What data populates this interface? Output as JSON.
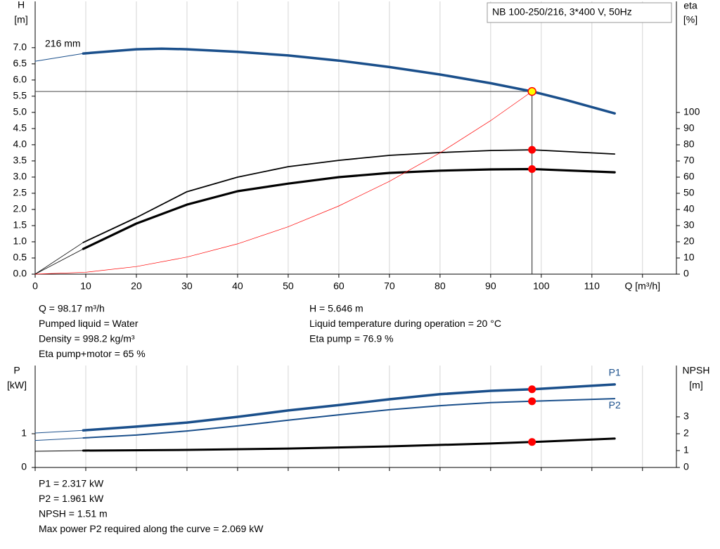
{
  "chart_data": [
    {
      "type": "line",
      "title": "NB 100-250/216, 3*400 V, 50Hz",
      "y_label": "H",
      "y_unit": "[m]",
      "y2_label": "eta",
      "y2_unit": "[%]",
      "annotations": [
        "216 mm"
      ],
      "xlim": [
        0,
        126.7
      ],
      "xticks": [
        0,
        10,
        20,
        30,
        40,
        50,
        60,
        70,
        80,
        90,
        100,
        110,
        {
          "value": 120,
          "label": "Q [m³/h]"
        }
      ],
      "show_xtick_labels": true,
      "ylim": [
        0,
        8.43
      ],
      "yticks": [
        {
          "value": 0,
          "label": "0.0"
        },
        {
          "value": 0.5,
          "label": "0.5"
        },
        {
          "value": 1,
          "label": "1.0"
        },
        {
          "value": 1.5,
          "label": "1.5"
        },
        {
          "value": 2,
          "label": "2.0"
        },
        {
          "value": 2.5,
          "label": "2.5"
        },
        {
          "value": 3,
          "label": "3.0"
        },
        {
          "value": 3.5,
          "label": "3.5"
        },
        {
          "value": 4,
          "label": "4.0"
        },
        {
          "value": 4.5,
          "label": "4.5"
        },
        {
          "value": 5,
          "label": "5.0"
        },
        {
          "value": 5.5,
          "label": "5.5"
        },
        {
          "value": 6,
          "label": "6.0"
        },
        {
          "value": 6.5,
          "label": "6.5"
        },
        {
          "value": 7,
          "label": "7.0"
        }
      ],
      "y2lim": [
        0,
        168.7
      ],
      "y2ticks": [
        0,
        10,
        20,
        30,
        40,
        50,
        60,
        70,
        80,
        90,
        100
      ],
      "series": [
        {
          "color": "#1a4f8b",
          "x": [
            0,
            9.5
          ],
          "values": [
            6.58,
            6.82
          ]
        },
        {
          "color": "#1a4f8b",
          "x": [
            9.5,
            20,
            25,
            30,
            40,
            50,
            60,
            70,
            80,
            90,
            98.17,
            105,
            114.5
          ],
          "values": [
            6.82,
            6.95,
            6.97,
            6.95,
            6.87,
            6.76,
            6.6,
            6.4,
            6.17,
            5.9,
            5.646,
            5.38,
            4.97
          ]
        },
        {
          "color": "#000000",
          "axis": "y2",
          "x": [
            0,
            9.5
          ],
          "values": [
            0,
            19.6
          ]
        },
        {
          "color": "#000000",
          "axis": "y2",
          "x": [
            9.5,
            20,
            30,
            40,
            50,
            60,
            70,
            80,
            90,
            98.17,
            114.5
          ],
          "values": [
            19.6,
            35,
            51,
            60,
            66.5,
            70.4,
            73.5,
            75.2,
            76.5,
            76.9,
            74.3
          ]
        },
        {
          "color": "#000000",
          "axis": "y2",
          "x": [
            0,
            9.5
          ],
          "values": [
            0,
            15.6
          ]
        },
        {
          "color": "#000000",
          "axis": "y2",
          "x": [
            9.5,
            20,
            30,
            40,
            50,
            60,
            70,
            80,
            90,
            98.17,
            114.5
          ],
          "values": [
            15.6,
            31.3,
            43,
            51.3,
            56,
            60,
            62.6,
            64,
            64.8,
            65,
            63
          ]
        },
        {
          "color": "#ff0000",
          "x": [
            0,
            10,
            20,
            30,
            40,
            50,
            60,
            70,
            80,
            90,
            98.17
          ],
          "values": [
            0,
            0.059,
            0.234,
            0.527,
            0.937,
            1.464,
            2.108,
            2.87,
            3.75,
            4.745,
            5.646
          ]
        }
      ],
      "points": [
        {
          "x": 98.17,
          "y": 5.646,
          "color": "#ffff00",
          "duty_lines": true
        },
        {
          "x": 98.17,
          "y": 76.9,
          "axis": "y2",
          "color": "#ff0000"
        },
        {
          "x": 98.17,
          "y": 65,
          "axis": "y2",
          "color": "#ff0000"
        }
      ],
      "notes_left": [
        "Q = 98.17 m³/h",
        "Pumped liquid = Water",
        "Density = 998.2 kg/m³",
        "Eta pump+motor = 65 %"
      ],
      "notes_right": [
        "H = 5.646 m",
        "Liquid temperature during operation = 20 °C",
        "Eta pump = 76.9 %"
      ]
    },
    {
      "type": "line",
      "y_label": "P",
      "y_unit": "[kW]",
      "y2_label": "NPSH",
      "y2_unit": "[m]",
      "xlim": [
        0,
        126.7
      ],
      "xticks": [
        0,
        10,
        20,
        30,
        40,
        50,
        60,
        70,
        80,
        90,
        100,
        110,
        120
      ],
      "show_xtick_labels": false,
      "ylim": [
        0,
        3.02
      ],
      "yticks": [
        0,
        1
      ],
      "y2lim": [
        0,
        6.04
      ],
      "y2ticks": [
        0,
        1,
        2,
        3
      ],
      "series": [
        {
          "color": "#1a4f8b",
          "x": [
            0,
            9.5
          ],
          "values": [
            1.02,
            1.1
          ]
        },
        {
          "name": "P1",
          "color": "#1a4f8b",
          "x": [
            9.5,
            20,
            30,
            40,
            50,
            60,
            70,
            80,
            90,
            98.17,
            114.5
          ],
          "values": [
            1.1,
            1.21,
            1.33,
            1.5,
            1.69,
            1.85,
            2.02,
            2.17,
            2.27,
            2.317,
            2.46
          ]
        },
        {
          "color": "#1a4f8b",
          "x": [
            0,
            9.5
          ],
          "values": [
            0.8,
            0.875
          ]
        },
        {
          "name": "P2",
          "color": "#1a4f8b",
          "x": [
            9.5,
            20,
            30,
            40,
            50,
            60,
            70,
            80,
            90,
            98.17,
            114.5
          ],
          "values": [
            0.875,
            0.96,
            1.08,
            1.23,
            1.4,
            1.56,
            1.71,
            1.83,
            1.92,
            1.961,
            2.04
          ]
        },
        {
          "color": "#000000",
          "axis": "y2",
          "x": [
            0,
            9.5
          ],
          "values": [
            0.96,
            1.0
          ]
        },
        {
          "color": "#000000",
          "axis": "y2",
          "x": [
            9.5,
            30,
            50,
            70,
            90,
            98.17,
            114.5
          ],
          "values": [
            1.0,
            1.04,
            1.12,
            1.25,
            1.42,
            1.51,
            1.71
          ]
        }
      ],
      "points": [
        {
          "x": 98.17,
          "y": 2.317,
          "color": "#ff0000"
        },
        {
          "x": 98.17,
          "y": 1.961,
          "color": "#ff0000"
        },
        {
          "x": 98.17,
          "y": 1.51,
          "axis": "y2",
          "color": "#ff0000"
        }
      ],
      "notes_left": [
        "P1 = 2.317 kW",
        "P2 = 1.961 kW",
        "NPSH = 1.51 m",
        "Max power P2 required along the curve = 2.069 kW"
      ]
    }
  ]
}
